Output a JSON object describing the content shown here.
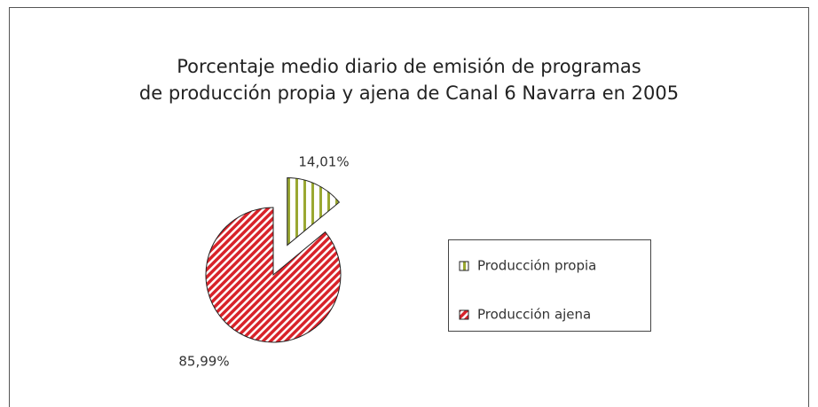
{
  "chart_data": {
    "type": "pie",
    "title": [
      "Porcentaje medio diario de emisión de programas",
      "de producción propia y ajena de Canal 6 Navarra en 2005"
    ],
    "categories": [
      "Producción propia",
      "Producción ajena"
    ],
    "values": [
      14.01,
      85.99
    ],
    "value_labels": [
      "14,01%",
      "85,99%"
    ],
    "colors": [
      "#9aa832",
      "#d8232a"
    ],
    "legend": "right"
  }
}
